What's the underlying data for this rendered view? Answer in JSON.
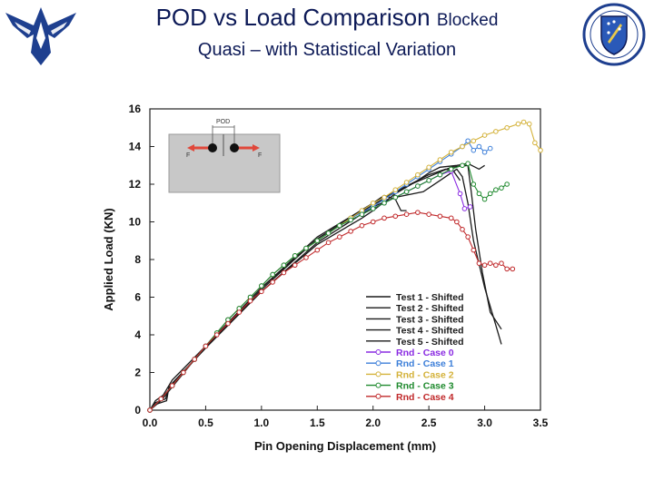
{
  "header": {
    "title_main": "POD vs Load Comparison",
    "title_small": "Blocked",
    "subtitle": "Quasi – with Statistical Variation"
  },
  "logos": {
    "left": "air-force-wings-logo",
    "right": "afrl-shield-logo"
  },
  "inset": {
    "pod_label": "POD",
    "force_left": "F",
    "force_right": "F"
  },
  "colors": {
    "test": "#1a1a1a",
    "case0": "#8a2be2",
    "case1": "#3d7fd9",
    "case2": "#d4b23a",
    "case3": "#1f8a2e",
    "case4": "#c0282a",
    "title": "#0d1a57"
  },
  "chart_data": {
    "type": "line",
    "title": "",
    "xlabel": "Pin Opening Displacement (mm)",
    "ylabel": "Applied Load (KN)",
    "xlim": [
      0,
      3.5
    ],
    "ylim": [
      0,
      16
    ],
    "xticks": [
      "0.0",
      "0.5",
      "1.0",
      "1.5",
      "2.0",
      "2.5",
      "3.0",
      "3.5"
    ],
    "yticks": [
      "0",
      "2",
      "4",
      "6",
      "8",
      "10",
      "12",
      "14",
      "16"
    ],
    "legend_position": "bottom-right",
    "series": [
      {
        "name": "Test 1 - Shifted",
        "kind": "test",
        "color": "#1a1a1a",
        "points": [
          [
            0,
            0
          ],
          [
            0.05,
            0.3
          ],
          [
            0.15,
            0.5
          ],
          [
            0.17,
            1.2
          ],
          [
            0.5,
            3.3
          ],
          [
            1.0,
            6.3
          ],
          [
            1.5,
            8.9
          ],
          [
            2.0,
            10.8
          ],
          [
            2.2,
            11.3
          ],
          [
            2.45,
            11.6
          ],
          [
            2.6,
            12.2
          ],
          [
            2.7,
            12.6
          ],
          [
            2.75,
            12.8
          ],
          [
            2.8,
            12.4
          ],
          [
            2.85,
            11.0
          ],
          [
            2.9,
            9.0
          ],
          [
            3.0,
            6.5
          ],
          [
            3.1,
            4.5
          ],
          [
            3.15,
            3.5
          ]
        ]
      },
      {
        "name": "Test 2 - Shifted",
        "kind": "test",
        "color": "#1a1a1a",
        "points": [
          [
            0,
            0
          ],
          [
            0.05,
            0.4
          ],
          [
            0.14,
            0.6
          ],
          [
            0.18,
            1.3
          ],
          [
            0.5,
            3.3
          ],
          [
            1.0,
            6.4
          ],
          [
            1.5,
            9.1
          ],
          [
            2.0,
            11.0
          ],
          [
            2.1,
            11.4
          ],
          [
            2.2,
            11.2
          ],
          [
            2.25,
            10.6
          ],
          [
            2.3,
            10.6
          ]
        ]
      },
      {
        "name": "Test 3 - Shifted",
        "kind": "test",
        "color": "#1a1a1a",
        "points": [
          [
            0,
            0
          ],
          [
            0.05,
            0.5
          ],
          [
            0.12,
            0.8
          ],
          [
            0.2,
            1.6
          ],
          [
            0.5,
            3.4
          ],
          [
            1.0,
            6.5
          ],
          [
            1.5,
            9.2
          ],
          [
            2.0,
            11.0
          ],
          [
            2.3,
            11.9
          ],
          [
            2.5,
            12.5
          ],
          [
            2.65,
            12.8
          ],
          [
            2.72,
            12.7
          ],
          [
            2.78,
            12.2
          ]
        ]
      },
      {
        "name": "Test 4 - Shifted",
        "kind": "test",
        "color": "#1a1a1a",
        "points": [
          [
            0,
            0
          ],
          [
            0.1,
            0.5
          ],
          [
            0.5,
            3.4
          ],
          [
            1.0,
            6.5
          ],
          [
            1.5,
            9.1
          ],
          [
            2.0,
            10.9
          ],
          [
            2.3,
            11.9
          ],
          [
            2.5,
            12.4
          ],
          [
            2.7,
            12.9
          ],
          [
            2.85,
            13.0
          ],
          [
            2.88,
            11.6
          ],
          [
            2.92,
            9.6
          ],
          [
            2.98,
            7.3
          ],
          [
            3.05,
            5.2
          ],
          [
            3.15,
            4.3
          ]
        ]
      },
      {
        "name": "Test 5 - Shifted",
        "kind": "test",
        "color": "#1a1a1a",
        "points": [
          [
            0,
            0
          ],
          [
            0.1,
            0.6
          ],
          [
            0.5,
            3.4
          ],
          [
            1.0,
            6.3
          ],
          [
            1.5,
            8.8
          ],
          [
            1.9,
            10.2
          ],
          [
            2.0,
            10.6
          ],
          [
            2.2,
            11.5
          ],
          [
            2.4,
            12.2
          ],
          [
            2.5,
            12.6
          ],
          [
            2.6,
            12.9
          ],
          [
            2.75,
            13.0
          ],
          [
            2.85,
            13.1
          ],
          [
            2.95,
            12.8
          ],
          [
            3.0,
            13.0
          ]
        ]
      },
      {
        "name": "Rnd - Case 0",
        "kind": "case",
        "color": "#8a2be2",
        "points": [
          [
            0.0,
            0
          ],
          [
            0.1,
            0.6
          ],
          [
            0.2,
            1.3
          ],
          [
            0.3,
            2.0
          ],
          [
            0.4,
            2.7
          ],
          [
            0.5,
            3.4
          ],
          [
            0.6,
            4.1
          ],
          [
            0.7,
            4.8
          ],
          [
            0.8,
            5.4
          ],
          [
            0.9,
            6.0
          ],
          [
            1.0,
            6.6
          ],
          [
            1.1,
            7.2
          ],
          [
            1.2,
            7.7
          ],
          [
            1.3,
            8.2
          ],
          [
            1.4,
            8.6
          ],
          [
            1.5,
            9.0
          ],
          [
            1.6,
            9.4
          ],
          [
            1.7,
            9.8
          ],
          [
            1.8,
            10.1
          ],
          [
            1.9,
            10.4
          ],
          [
            2.0,
            10.7
          ],
          [
            2.1,
            11.0
          ],
          [
            2.2,
            11.3
          ],
          [
            2.3,
            11.6
          ],
          [
            2.4,
            11.9
          ],
          [
            2.5,
            12.2
          ],
          [
            2.6,
            12.5
          ],
          [
            2.7,
            12.7
          ],
          [
            2.78,
            11.5
          ],
          [
            2.82,
            10.7
          ],
          [
            2.87,
            10.8
          ]
        ]
      },
      {
        "name": "Rnd - Case 1",
        "kind": "case",
        "color": "#3d7fd9",
        "points": [
          [
            0.0,
            0
          ],
          [
            0.1,
            0.6
          ],
          [
            0.2,
            1.3
          ],
          [
            0.3,
            2.0
          ],
          [
            0.4,
            2.7
          ],
          [
            0.5,
            3.4
          ],
          [
            0.6,
            4.1
          ],
          [
            0.7,
            4.8
          ],
          [
            0.8,
            5.4
          ],
          [
            0.9,
            6.0
          ],
          [
            1.0,
            6.6
          ],
          [
            1.1,
            7.2
          ],
          [
            1.2,
            7.7
          ],
          [
            1.3,
            8.2
          ],
          [
            1.4,
            8.6
          ],
          [
            1.5,
            9.0
          ],
          [
            1.6,
            9.4
          ],
          [
            1.7,
            9.8
          ],
          [
            1.8,
            10.2
          ],
          [
            1.9,
            10.5
          ],
          [
            2.0,
            10.8
          ],
          [
            2.1,
            11.2
          ],
          [
            2.2,
            11.6
          ],
          [
            2.3,
            12.0
          ],
          [
            2.4,
            12.4
          ],
          [
            2.5,
            12.8
          ],
          [
            2.6,
            13.2
          ],
          [
            2.7,
            13.6
          ],
          [
            2.8,
            14.0
          ],
          [
            2.85,
            14.3
          ],
          [
            2.9,
            13.8
          ],
          [
            2.95,
            14.0
          ],
          [
            3.0,
            13.7
          ],
          [
            3.05,
            13.9
          ]
        ]
      },
      {
        "name": "Rnd - Case 2",
        "kind": "case",
        "color": "#d4b23a",
        "points": [
          [
            0.0,
            0
          ],
          [
            0.1,
            0.6
          ],
          [
            0.2,
            1.3
          ],
          [
            0.3,
            2.0
          ],
          [
            0.4,
            2.7
          ],
          [
            0.5,
            3.4
          ],
          [
            0.6,
            4.1
          ],
          [
            0.7,
            4.8
          ],
          [
            0.8,
            5.4
          ],
          [
            0.9,
            6.0
          ],
          [
            1.0,
            6.6
          ],
          [
            1.1,
            7.2
          ],
          [
            1.2,
            7.7
          ],
          [
            1.3,
            8.2
          ],
          [
            1.4,
            8.6
          ],
          [
            1.5,
            9.0
          ],
          [
            1.6,
            9.4
          ],
          [
            1.7,
            9.8
          ],
          [
            1.8,
            10.2
          ],
          [
            1.9,
            10.6
          ],
          [
            2.0,
            11.0
          ],
          [
            2.1,
            11.3
          ],
          [
            2.2,
            11.7
          ],
          [
            2.3,
            12.1
          ],
          [
            2.4,
            12.5
          ],
          [
            2.5,
            12.9
          ],
          [
            2.6,
            13.3
          ],
          [
            2.7,
            13.7
          ],
          [
            2.8,
            14.0
          ],
          [
            2.9,
            14.3
          ],
          [
            3.0,
            14.6
          ],
          [
            3.1,
            14.8
          ],
          [
            3.2,
            15.0
          ],
          [
            3.3,
            15.2
          ],
          [
            3.35,
            15.3
          ],
          [
            3.4,
            15.2
          ],
          [
            3.45,
            14.2
          ],
          [
            3.5,
            13.8
          ]
        ]
      },
      {
        "name": "Rnd - Case 3",
        "kind": "case",
        "color": "#1f8a2e",
        "points": [
          [
            0.0,
            0
          ],
          [
            0.1,
            0.6
          ],
          [
            0.2,
            1.3
          ],
          [
            0.3,
            2.0
          ],
          [
            0.4,
            2.7
          ],
          [
            0.5,
            3.4
          ],
          [
            0.6,
            4.1
          ],
          [
            0.7,
            4.8
          ],
          [
            0.8,
            5.4
          ],
          [
            0.9,
            6.0
          ],
          [
            1.0,
            6.6
          ],
          [
            1.1,
            7.2
          ],
          [
            1.2,
            7.7
          ],
          [
            1.3,
            8.2
          ],
          [
            1.4,
            8.6
          ],
          [
            1.5,
            9.0
          ],
          [
            1.6,
            9.4
          ],
          [
            1.7,
            9.8
          ],
          [
            1.8,
            10.1
          ],
          [
            1.9,
            10.4
          ],
          [
            2.0,
            10.7
          ],
          [
            2.1,
            11.0
          ],
          [
            2.2,
            11.3
          ],
          [
            2.3,
            11.6
          ],
          [
            2.4,
            11.9
          ],
          [
            2.5,
            12.2
          ],
          [
            2.6,
            12.5
          ],
          [
            2.7,
            12.8
          ],
          [
            2.8,
            13.0
          ],
          [
            2.85,
            13.1
          ],
          [
            2.9,
            12.0
          ],
          [
            2.95,
            11.5
          ],
          [
            3.0,
            11.2
          ],
          [
            3.05,
            11.5
          ],
          [
            3.1,
            11.7
          ],
          [
            3.15,
            11.8
          ],
          [
            3.2,
            12.0
          ]
        ]
      },
      {
        "name": "Rnd - Case 4",
        "kind": "case",
        "color": "#c0282a",
        "points": [
          [
            0.0,
            0
          ],
          [
            0.1,
            0.6
          ],
          [
            0.2,
            1.3
          ],
          [
            0.3,
            2.0
          ],
          [
            0.4,
            2.7
          ],
          [
            0.5,
            3.4
          ],
          [
            0.6,
            4.0
          ],
          [
            0.7,
            4.6
          ],
          [
            0.8,
            5.2
          ],
          [
            0.9,
            5.8
          ],
          [
            1.0,
            6.3
          ],
          [
            1.1,
            6.8
          ],
          [
            1.2,
            7.3
          ],
          [
            1.3,
            7.7
          ],
          [
            1.4,
            8.1
          ],
          [
            1.5,
            8.5
          ],
          [
            1.6,
            8.9
          ],
          [
            1.7,
            9.2
          ],
          [
            1.8,
            9.5
          ],
          [
            1.9,
            9.8
          ],
          [
            2.0,
            10.0
          ],
          [
            2.1,
            10.2
          ],
          [
            2.2,
            10.3
          ],
          [
            2.3,
            10.4
          ],
          [
            2.4,
            10.5
          ],
          [
            2.5,
            10.4
          ],
          [
            2.6,
            10.3
          ],
          [
            2.7,
            10.2
          ],
          [
            2.75,
            10.0
          ],
          [
            2.8,
            9.6
          ],
          [
            2.85,
            9.2
          ],
          [
            2.9,
            8.5
          ],
          [
            2.95,
            7.8
          ],
          [
            3.0,
            7.7
          ],
          [
            3.05,
            7.8
          ],
          [
            3.1,
            7.7
          ],
          [
            3.15,
            7.8
          ],
          [
            3.2,
            7.5
          ],
          [
            3.25,
            7.5
          ]
        ]
      }
    ]
  }
}
